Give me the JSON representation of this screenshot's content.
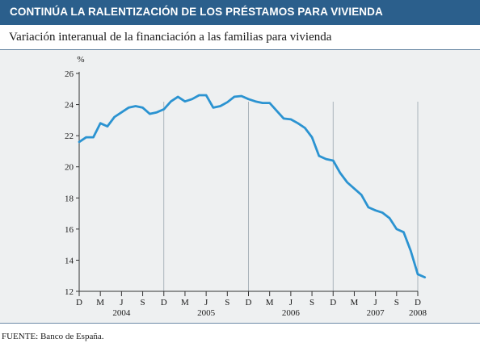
{
  "header": {
    "title": "CONTINÚA LA RALENTIZACIÓN DE LOS PRÉSTAMOS PARA VIVIENDA",
    "subtitle": "Variación interanual de la financiación a las familias para vivienda"
  },
  "footer": {
    "source": "FUENTE: Banco de España."
  },
  "colors": {
    "title_bar": "#2b5f8c",
    "line": "#2b93d1",
    "background": "#eef0f1"
  },
  "chart_data": {
    "type": "line",
    "title": "CONTINÚA LA RALENTIZACIÓN DE LOS PRÉSTAMOS PARA VIVIENDA",
    "subtitle": "Variación interanual de la financiación a las familias para vivienda",
    "ylabel": "%",
    "xlabel": "",
    "ylim": [
      12,
      26
    ],
    "yticks": [
      12,
      14,
      16,
      18,
      20,
      22,
      24,
      26
    ],
    "grid": false,
    "legend": "none",
    "x_tick_labels": [
      "D",
      "M",
      "J",
      "S",
      "D",
      "M",
      "J",
      "S",
      "D",
      "M",
      "J",
      "S",
      "D",
      "M",
      "J",
      "S",
      "D"
    ],
    "year_labels": [
      "2004",
      "2005",
      "2006",
      "2007",
      "2008"
    ],
    "x": [
      "2003-12",
      "2004-01",
      "2004-02",
      "2004-03",
      "2004-04",
      "2004-05",
      "2004-06",
      "2004-07",
      "2004-08",
      "2004-09",
      "2004-10",
      "2004-11",
      "2004-12",
      "2005-01",
      "2005-02",
      "2005-03",
      "2005-04",
      "2005-05",
      "2005-06",
      "2005-07",
      "2005-08",
      "2005-09",
      "2005-10",
      "2005-11",
      "2005-12",
      "2006-01",
      "2006-02",
      "2006-03",
      "2006-04",
      "2006-05",
      "2006-06",
      "2006-07",
      "2006-08",
      "2006-09",
      "2006-10",
      "2006-11",
      "2006-12",
      "2007-01",
      "2007-02",
      "2007-03",
      "2007-04",
      "2007-05",
      "2007-06",
      "2007-07",
      "2007-08",
      "2007-09",
      "2007-10",
      "2007-11",
      "2007-12",
      "2008-01"
    ],
    "series": [
      {
        "values": [
          21.6,
          21.9,
          21.9,
          22.8,
          22.6,
          23.2,
          23.5,
          23.8,
          23.9,
          23.8,
          23.4,
          23.5,
          23.7,
          24.2,
          24.5,
          24.2,
          24.35,
          24.6,
          24.6,
          23.8,
          23.9,
          24.15,
          24.5,
          24.55,
          24.35,
          24.2,
          24.1,
          24.1,
          23.6,
          23.1,
          23.05,
          22.8,
          22.5,
          21.9,
          20.7,
          20.5,
          20.4,
          19.6,
          19.0,
          18.6,
          18.2,
          17.4,
          17.2,
          17.05,
          16.7,
          16.0,
          15.8,
          14.6,
          13.1,
          12.9
        ]
      }
    ]
  }
}
